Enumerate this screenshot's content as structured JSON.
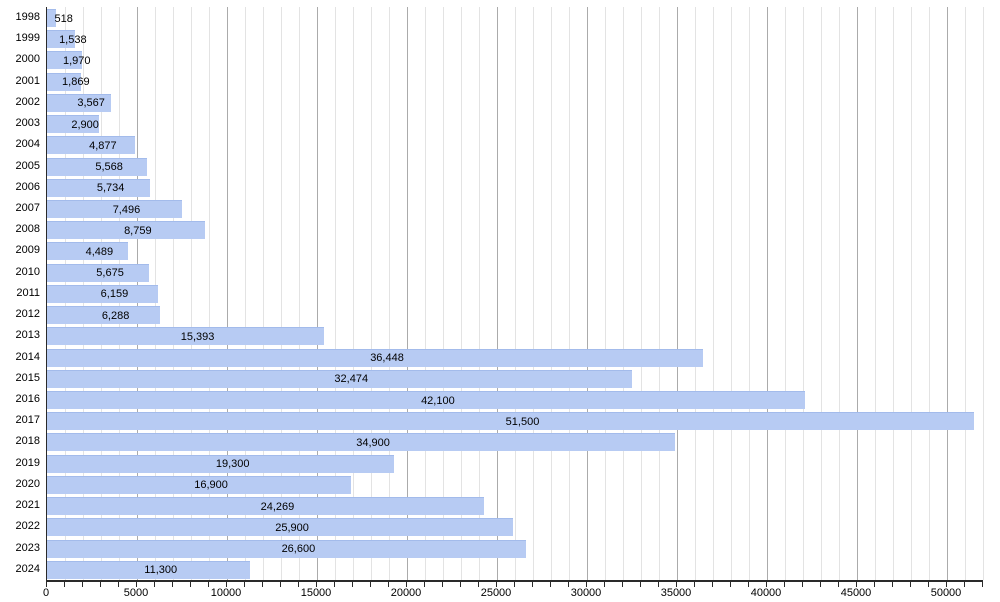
{
  "chart_data": {
    "type": "bar",
    "orientation": "horizontal",
    "title": "",
    "xlabel": "",
    "ylabel": "",
    "legend": false,
    "grid": true,
    "categories": [
      "1998",
      "1999",
      "2000",
      "2001",
      "2002",
      "2003",
      "2004",
      "2005",
      "2006",
      "2007",
      "2008",
      "2009",
      "2010",
      "2011",
      "2012",
      "2013",
      "2014",
      "2015",
      "2016",
      "2017",
      "2018",
      "2019",
      "2020",
      "2021",
      "2022",
      "2023",
      "2024"
    ],
    "values": [
      518,
      1538,
      1970,
      1869,
      3567,
      2900,
      4877,
      5568,
      5734,
      7496,
      8759,
      4489,
      5675,
      6159,
      6288,
      15393,
      36448,
      32474,
      42100,
      51500,
      34900,
      19300,
      16900,
      24269,
      25900,
      26600,
      11300
    ],
    "value_labels": [
      "518",
      "1,538",
      "1,970",
      "1,869",
      "3,567",
      "2,900",
      "4,877",
      "5,568",
      "5,734",
      "7,496",
      "8,759",
      "4,489",
      "5,675",
      "6,159",
      "6,288",
      "15,393",
      "36,448",
      "32,474",
      "42,100",
      "51,500",
      "34,900",
      "19,300",
      "16,900",
      "24,269",
      "25,900",
      "26,600",
      "11,300"
    ],
    "xlim": [
      0,
      52000
    ],
    "x_tick_labels": [
      "0",
      "5000",
      "10000",
      "15000",
      "20000",
      "25000",
      "30000",
      "35000",
      "40000",
      "45000",
      "50000"
    ],
    "x_label_step": 5000,
    "minor_grid_step": 1000,
    "major_grid_step": 5000,
    "colors": {
      "bar_fill": "#b7cbf3",
      "bar_edge": "#a3bbeb",
      "grid_minor": "#e3e3e3",
      "grid_major": "#ababab",
      "axis": "#2a2a2a",
      "text": "#000000",
      "background": "#ffffff"
    }
  }
}
